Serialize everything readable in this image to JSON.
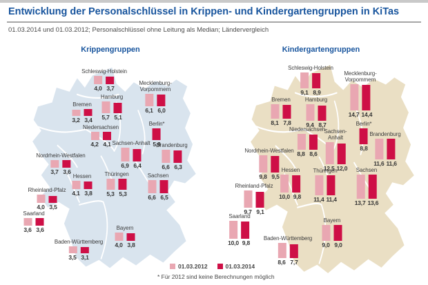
{
  "header": {
    "title": "Entwicklung der Personalschlüssel in Krippen- und Kindergartengruppen in KiTas",
    "subtitle": "01.03.2014 und 01.03.2012; Personalschlüssel ohne Leitung als Median; Ländervergleich"
  },
  "colors": {
    "title_blue": "#17549d",
    "bar_2012": "#e9a7b2",
    "bar_2014": "#ce0f46",
    "map_krippen": "#d9e4ee",
    "map_kindergarten": "#eadfc4"
  },
  "chart_data": {
    "type": "bar",
    "title": "Entwicklung der Personalschlüssel in Krippen- und Kindergartengruppen in KiTas",
    "subtitle": "01.03.2014 und 01.03.2012; Personalschlüssel ohne Leitung als Median; Ländervergleich",
    "legend": [
      "01.03.2012",
      "01.03.2014"
    ],
    "note": "* Für 2012 sind keine Berechnungen möglich",
    "groups": [
      {
        "name": "Krippengruppen",
        "categories": [
          "Schleswig-Holstein",
          "Mecklenburg-Vorpommern",
          "Hamburg",
          "Bremen",
          "Niedersachsen",
          "Berlin*",
          "Sachsen-Anhalt",
          "Brandenburg",
          "Nordrhein-Westfalen",
          "Hessen",
          "Thüringen",
          "Sachsen",
          "Rheinland-Pfalz",
          "Saarland",
          "Baden-Württemberg",
          "Bayern"
        ],
        "series": [
          {
            "name": "01.03.2012",
            "values": [
              4.0,
              6.1,
              5.7,
              3.2,
              4.2,
              null,
              6.9,
              6.6,
              3.7,
              4.1,
              5.3,
              6.6,
              4.0,
              3.6,
              3.5,
              4.0
            ]
          },
          {
            "name": "01.03.2014",
            "values": [
              3.7,
              6.0,
              5.1,
              3.4,
              4.1,
              5.9,
              6.4,
              6.3,
              3.6,
              3.8,
              5.3,
              6.5,
              3.5,
              3.6,
              3.1,
              3.8
            ]
          }
        ]
      },
      {
        "name": "Kindergartengruppen",
        "categories": [
          "Schleswig-Holstein",
          "Mecklenburg-Vorpommern",
          "Hamburg",
          "Bremen",
          "Niedersachsen",
          "Berlin*",
          "Sachsen-Anhalt",
          "Brandenburg",
          "Nordrhein-Westfalen",
          "Hessen",
          "Thüringen",
          "Sachsen",
          "Rheinland-Pfalz",
          "Saarland",
          "Baden-Württemberg",
          "Bayern"
        ],
        "series": [
          {
            "name": "01.03.2012",
            "values": [
              9.1,
              14.7,
              9.4,
              8.1,
              8.8,
              null,
              12.5,
              11.6,
              9.8,
              10.0,
              11.4,
              13.7,
              9.7,
              10.0,
              8.6,
              9.0
            ]
          },
          {
            "name": "01.03.2014",
            "values": [
              8.9,
              14.4,
              8.7,
              7.8,
              8.6,
              8.8,
              12.0,
              11.6,
              9.5,
              9.8,
              11.4,
              13.6,
              9.1,
              9.8,
              7.7,
              9.0
            ]
          }
        ]
      }
    ]
  },
  "maps": [
    {
      "id": "krippen",
      "title": "Krippengruppen",
      "states": [
        {
          "id": "schleswig-holstein",
          "label_lines": [
            "Schleswig-Holstein"
          ],
          "v2012": "4,0",
          "v2014": "3,7"
        },
        {
          "id": "mecklenburg-vorpommern",
          "label_lines": [
            "Mecklenburg-",
            "Vorpommern"
          ],
          "v2012": "6,1",
          "v2014": "6,0"
        },
        {
          "id": "hamburg",
          "label_lines": [
            "Hamburg"
          ],
          "v2012": "5,7",
          "v2014": "5,1"
        },
        {
          "id": "bremen",
          "label_lines": [
            "Bremen"
          ],
          "v2012": "3,2",
          "v2014": "3,4"
        },
        {
          "id": "niedersachsen",
          "label_lines": [
            "Niedersachsen"
          ],
          "v2012": "4,2",
          "v2014": "4,1"
        },
        {
          "id": "berlin",
          "label_lines": [
            "Berlin*"
          ],
          "v2012": null,
          "v2014": "5,9"
        },
        {
          "id": "sachsen-anhalt",
          "label_lines": [
            "Sachsen-Anhalt"
          ],
          "v2012": "6,9",
          "v2014": "6,4"
        },
        {
          "id": "brandenburg",
          "label_lines": [
            "Brandenburg"
          ],
          "v2012": "6,6",
          "v2014": "6,3"
        },
        {
          "id": "nordrhein-westfalen",
          "label_lines": [
            "Nordrhein-Westfalen"
          ],
          "v2012": "3,7",
          "v2014": "3,6"
        },
        {
          "id": "hessen",
          "label_lines": [
            "Hessen"
          ],
          "v2012": "4,1",
          "v2014": "3,8"
        },
        {
          "id": "thueringen",
          "label_lines": [
            "Thüringen"
          ],
          "v2012": "5,3",
          "v2014": "5,3"
        },
        {
          "id": "sachsen",
          "label_lines": [
            "Sachsen"
          ],
          "v2012": "6,6",
          "v2014": "6,5"
        },
        {
          "id": "rheinland-pfalz",
          "label_lines": [
            "Rheinland-Pfalz"
          ],
          "v2012": "4,0",
          "v2014": "3,5"
        },
        {
          "id": "saarland",
          "label_lines": [
            "Saarland"
          ],
          "v2012": "3,6",
          "v2014": "3,6"
        },
        {
          "id": "baden-wuerttemberg",
          "label_lines": [
            "Baden-Württemberg"
          ],
          "v2012": "3,5",
          "v2014": "3,1"
        },
        {
          "id": "bayern",
          "label_lines": [
            "Bayern"
          ],
          "v2012": "4,0",
          "v2014": "3,8"
        }
      ]
    },
    {
      "id": "kindergarten",
      "title": "Kindergartengruppen",
      "states": [
        {
          "id": "schleswig-holstein",
          "label_lines": [
            "Schleswig-Holstein"
          ],
          "v2012": "9,1",
          "v2014": "8,9"
        },
        {
          "id": "mecklenburg-vorpommern",
          "label_lines": [
            "Mecklenburg-",
            "Vorpommern"
          ],
          "v2012": "14,7",
          "v2014": "14,4"
        },
        {
          "id": "bremen",
          "label_lines": [
            "Bremen"
          ],
          "v2012": "8,1",
          "v2014": "7,8"
        },
        {
          "id": "hamburg",
          "label_lines": [
            "Hamburg"
          ],
          "v2012": "9,4",
          "v2014": "8,7"
        },
        {
          "id": "niedersachsen",
          "label_lines": [
            "Niedersachsen"
          ],
          "v2012": "8,8",
          "v2014": "8,6"
        },
        {
          "id": "sachsen-anhalt",
          "label_lines": [
            "Sachsen-",
            "Anhalt"
          ],
          "v2012": "12,5",
          "v2014": "12,0"
        },
        {
          "id": "berlin",
          "label_lines": [
            "Berlin*"
          ],
          "v2012": null,
          "v2014": "8,8"
        },
        {
          "id": "brandenburg",
          "label_lines": [
            "Brandenburg"
          ],
          "v2012": "11,6",
          "v2014": "11,6"
        },
        {
          "id": "nordrhein-westfalen",
          "label_lines": [
            "Nordrhein-Westfalen"
          ],
          "v2012": "9,8",
          "v2014": "9,5"
        },
        {
          "id": "hessen",
          "label_lines": [
            "Hessen"
          ],
          "v2012": "10,0",
          "v2014": "9,8"
        },
        {
          "id": "thueringen",
          "label_lines": [
            "Thüringen"
          ],
          "v2012": "11,4",
          "v2014": "11,4"
        },
        {
          "id": "sachsen",
          "label_lines": [
            "Sachsen"
          ],
          "v2012": "13,7",
          "v2014": "13,6"
        },
        {
          "id": "rheinland-pfalz",
          "label_lines": [
            "Rheinland-Pfalz"
          ],
          "v2012": "9,7",
          "v2014": "9,1"
        },
        {
          "id": "saarland",
          "label_lines": [
            "Saarland"
          ],
          "v2012": "10,0",
          "v2014": "9,8"
        },
        {
          "id": "bayern",
          "label_lines": [
            "Bayern"
          ],
          "v2012": "9,0",
          "v2014": "9,0"
        },
        {
          "id": "baden-wuerttemberg",
          "label_lines": [
            "Baden-Württemberg"
          ],
          "v2012": "8,6",
          "v2014": "7,7"
        }
      ]
    }
  ],
  "legend": {
    "items": [
      {
        "id": "2012",
        "label": "01.03.2012"
      },
      {
        "id": "2014",
        "label": "01.03.2014"
      }
    ]
  },
  "footnote": "* Für 2012 sind keine Berechnungen möglich"
}
